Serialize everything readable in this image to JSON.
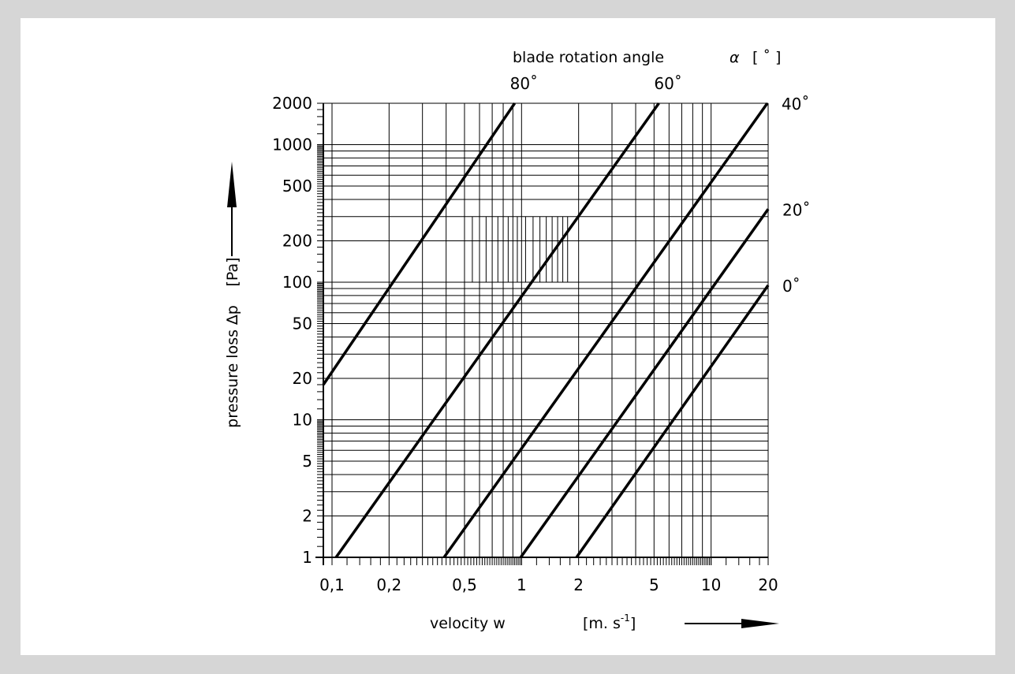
{
  "chart_data": {
    "type": "line",
    "xlabel": "velocity  w",
    "xunit": {
      "base": "[m. s",
      "exp": "-1",
      "close": "]"
    },
    "ylabel": "pressure loss  ∆p",
    "yunit": "[Pa]",
    "top_label": {
      "text": "blade  rotation angle",
      "symbol": "α",
      "unit": "[ ˚ ]"
    },
    "x_scale": "log",
    "y_scale": "log",
    "xlim": [
      0.09,
      20
    ],
    "ylim": [
      1,
      2000
    ],
    "grid": true,
    "x_ticks": [
      {
        "value": 0.1,
        "label": "0,1"
      },
      {
        "value": 0.2,
        "label": "0,2"
      },
      {
        "value": 0.5,
        "label": "0,5"
      },
      {
        "value": 1,
        "label": "1"
      },
      {
        "value": 2,
        "label": "2"
      },
      {
        "value": 5,
        "label": "5"
      },
      {
        "value": 10,
        "label": "10"
      },
      {
        "value": 20,
        "label": "20"
      }
    ],
    "y_ticks": [
      {
        "value": 1,
        "label": "1"
      },
      {
        "value": 2,
        "label": "2"
      },
      {
        "value": 5,
        "label": "5"
      },
      {
        "value": 10,
        "label": "10"
      },
      {
        "value": 20,
        "label": "20"
      },
      {
        "value": 50,
        "label": "50"
      },
      {
        "value": 100,
        "label": "100"
      },
      {
        "value": 200,
        "label": "200"
      },
      {
        "value": 500,
        "label": "500"
      },
      {
        "value": 1000,
        "label": "1000"
      },
      {
        "value": 2000,
        "label": "2000"
      }
    ],
    "series": [
      {
        "name": "80˚",
        "x": [
          0.09,
          0.92
        ],
        "y": [
          18,
          2000
        ]
      },
      {
        "name": "60˚",
        "x": [
          0.105,
          5.3
        ],
        "y": [
          1,
          2000
        ]
      },
      {
        "name": "40˚",
        "x": [
          0.39,
          19.8
        ],
        "y": [
          1,
          2000
        ]
      },
      {
        "name": "20˚",
        "x": [
          0.99,
          20
        ],
        "y": [
          1,
          340
        ]
      },
      {
        "name": "0˚",
        "x": [
          1.95,
          20
        ],
        "y": [
          1,
          95
        ]
      }
    ]
  }
}
